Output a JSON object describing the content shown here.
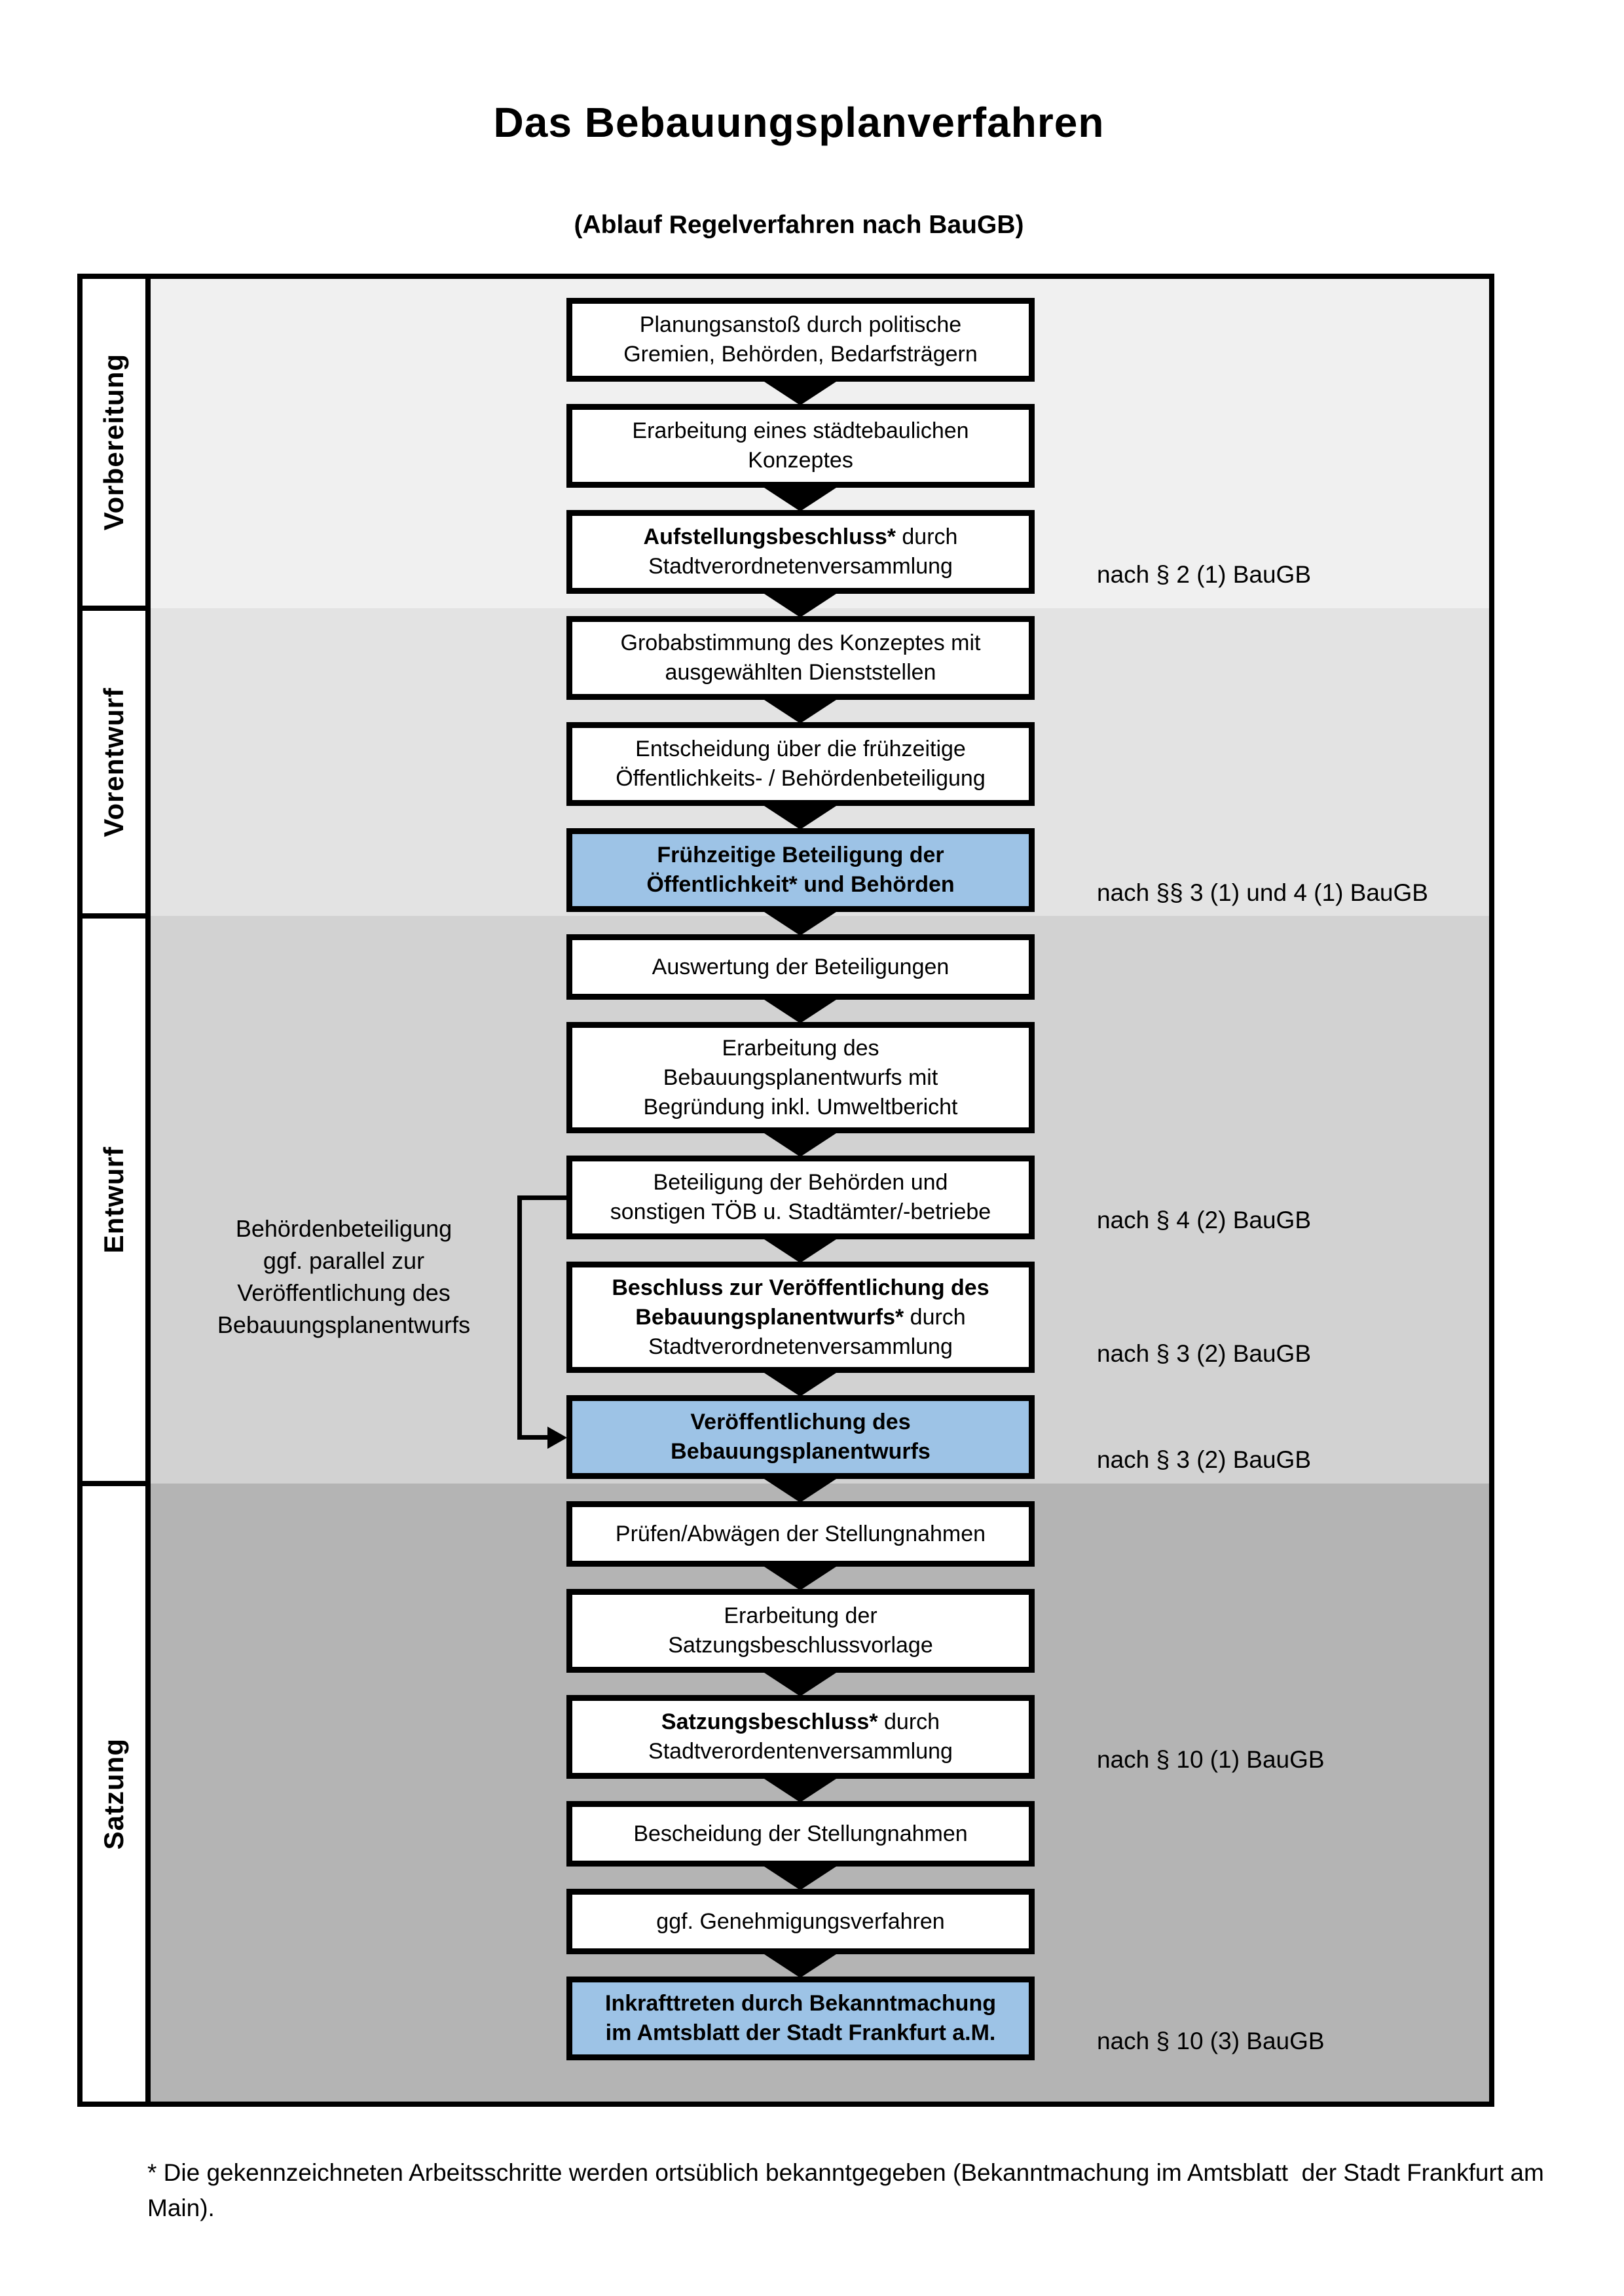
{
  "title": "Das Bebauungsplanverfahren",
  "subtitle": "(Ablauf Regelverfahren nach BauGB)",
  "colors": {
    "highlight_box": "#9dc3e6",
    "box_background": "#ffffff",
    "border": "#000000",
    "section_backgrounds": [
      "#f0f0f0",
      "#e3e3e3",
      "#d2d2d2",
      "#b4b4b4"
    ]
  },
  "phases": [
    {
      "id": "vorbereitung",
      "label": "Vorbereitung"
    },
    {
      "id": "vorentwurf",
      "label": "Vorentwurf"
    },
    {
      "id": "entwurf",
      "label": "Entwurf"
    },
    {
      "id": "satzung",
      "label": "Satzung"
    }
  ],
  "steps": [
    {
      "id": "planungsanstoss",
      "phase": "vorbereitung",
      "highlight": false,
      "ref": null,
      "lines": [
        [
          {
            "t": "Planungsanstoß durch politische",
            "b": false
          }
        ],
        [
          {
            "t": "Gremien, Behörden, Bedarfsträgern",
            "b": false
          }
        ]
      ]
    },
    {
      "id": "staedtebauliches-konzept",
      "phase": "vorbereitung",
      "highlight": false,
      "ref": null,
      "lines": [
        [
          {
            "t": "Erarbeitung eines städtebaulichen",
            "b": false
          }
        ],
        [
          {
            "t": "Konzeptes",
            "b": false
          }
        ]
      ]
    },
    {
      "id": "aufstellungsbeschluss",
      "phase": "vorbereitung",
      "highlight": false,
      "ref": "nach § 2 (1) BauGB",
      "lines": [
        [
          {
            "t": "Aufstellungsbeschluss*",
            "b": true
          },
          {
            "t": " durch",
            "b": false
          }
        ],
        [
          {
            "t": "Stadtverordnetenversammlung",
            "b": false
          }
        ]
      ]
    },
    {
      "id": "grobabstimmung",
      "phase": "vorentwurf",
      "highlight": false,
      "ref": null,
      "lines": [
        [
          {
            "t": "Grobabstimmung des Konzeptes mit",
            "b": false
          }
        ],
        [
          {
            "t": "ausgewählten Dienststellen",
            "b": false
          }
        ]
      ]
    },
    {
      "id": "entscheidung-fruehzeitige-beteiligung",
      "phase": "vorentwurf",
      "highlight": false,
      "ref": null,
      "lines": [
        [
          {
            "t": "Entscheidung über die frühzeitige",
            "b": false
          }
        ],
        [
          {
            "t": "Öffentlichkeits- / Behördenbeteiligung",
            "b": false
          }
        ]
      ]
    },
    {
      "id": "fruehzeitige-beteiligung",
      "phase": "vorentwurf",
      "highlight": true,
      "ref": "nach §§ 3 (1) und 4 (1) BauGB",
      "lines": [
        [
          {
            "t": "Frühzeitige Beteiligung der",
            "b": true
          }
        ],
        [
          {
            "t": "Öffentlichkeit* und Behörden",
            "b": true
          }
        ]
      ]
    },
    {
      "id": "auswertung-beteiligungen",
      "phase": "entwurf",
      "highlight": false,
      "ref": null,
      "lines": [
        [
          {
            "t": "Auswertung der Beteiligungen",
            "b": false
          }
        ]
      ]
    },
    {
      "id": "erarbeitung-bebauungsplanentwurf",
      "phase": "entwurf",
      "highlight": false,
      "ref": null,
      "lines": [
        [
          {
            "t": "Erarbeitung des",
            "b": false
          }
        ],
        [
          {
            "t": "Bebauungsplanentwurfs mit",
            "b": false
          }
        ],
        [
          {
            "t": "Begründung inkl. Umweltbericht",
            "b": false
          }
        ]
      ]
    },
    {
      "id": "behoerdenbeteiligung-toeb",
      "phase": "entwurf",
      "highlight": false,
      "ref": "nach § 4 (2) BauGB",
      "lines": [
        [
          {
            "t": "Beteiligung der Behörden und",
            "b": false
          }
        ],
        [
          {
            "t": "sonstigen TÖB u. Stadtämter/-betriebe",
            "b": false
          }
        ]
      ]
    },
    {
      "id": "beschluss-veroeffentlichung",
      "phase": "entwurf",
      "highlight": false,
      "ref": "nach § 3 (2) BauGB",
      "lines": [
        [
          {
            "t": "Beschluss zur Veröffentlichung des",
            "b": true
          }
        ],
        [
          {
            "t": "Bebauungsplanentwurfs*",
            "b": true
          },
          {
            "t": " durch",
            "b": false
          }
        ],
        [
          {
            "t": "Stadtverordnetenversammlung",
            "b": false
          }
        ]
      ]
    },
    {
      "id": "veroeffentlichung-entwurf",
      "phase": "entwurf",
      "highlight": true,
      "ref": "nach § 3 (2) BauGB",
      "lines": [
        [
          {
            "t": "Veröffentlichung des",
            "b": true
          }
        ],
        [
          {
            "t": "Bebauungsplanentwurfs",
            "b": true
          }
        ]
      ]
    },
    {
      "id": "pruefen-abwaegen",
      "phase": "satzung",
      "highlight": false,
      "ref": null,
      "lines": [
        [
          {
            "t": "Prüfen/Abwägen der Stellungnahmen",
            "b": false
          }
        ]
      ]
    },
    {
      "id": "satzungsbeschlussvorlage",
      "phase": "satzung",
      "highlight": false,
      "ref": null,
      "lines": [
        [
          {
            "t": "Erarbeitung der",
            "b": false
          }
        ],
        [
          {
            "t": "Satzungsbeschlussvorlage",
            "b": false
          }
        ]
      ]
    },
    {
      "id": "satzungsbeschluss",
      "phase": "satzung",
      "highlight": false,
      "ref": "nach § 10 (1) BauGB",
      "lines": [
        [
          {
            "t": "Satzungsbeschluss*",
            "b": true
          },
          {
            "t": " durch",
            "b": false
          }
        ],
        [
          {
            "t": "Stadtverordentenversammlung",
            "b": false
          }
        ]
      ]
    },
    {
      "id": "bescheidung-stellungnahmen",
      "phase": "satzung",
      "highlight": false,
      "ref": null,
      "lines": [
        [
          {
            "t": "Bescheidung der Stellungnahmen",
            "b": false
          }
        ]
      ]
    },
    {
      "id": "genehmigungsverfahren",
      "phase": "satzung",
      "highlight": false,
      "ref": null,
      "lines": [
        [
          {
            "t": "ggf. Genehmigungsverfahren",
            "b": false
          }
        ]
      ]
    },
    {
      "id": "inkrafttreten",
      "phase": "satzung",
      "highlight": true,
      "ref": "nach § 10 (3) BauGB",
      "lines": [
        [
          {
            "t": "Inkrafttreten",
            "b": true
          },
          {
            "t": " durch Bekanntmachung",
            "b": false
          }
        ],
        [
          {
            "t": "im Amtsblatt der Stadt Frankfurt a.M.",
            "b": false
          }
        ]
      ]
    }
  ],
  "side_note": {
    "lines": [
      "Behördenbeteiligung",
      "ggf. parallel zur",
      "Veröffentlichung des",
      "Bebauungsplanentwurfs"
    ]
  },
  "footnote": "* Die gekennzeichneten Arbeitsschritte werden ortsüblich bekanntgegeben (Bekanntmachung im Amtsblatt  der Stadt Frankfurt am Main)."
}
